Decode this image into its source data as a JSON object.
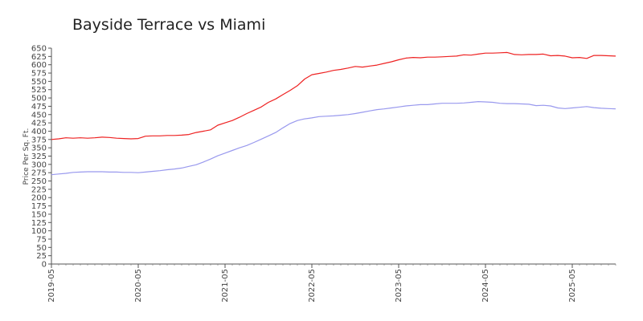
{
  "chart_data": {
    "type": "line",
    "title": "Bayside Terrace vs Miami",
    "xlabel": "",
    "ylabel": "Price Per Sq. Ft.",
    "ylim": [
      0,
      650
    ],
    "yticks": [
      0,
      25,
      50,
      75,
      100,
      125,
      150,
      175,
      200,
      225,
      250,
      275,
      300,
      325,
      350,
      375,
      400,
      425,
      450,
      475,
      500,
      525,
      550,
      575,
      600,
      625,
      650
    ],
    "xticks": [
      "2019-05",
      "2020-05",
      "2021-05",
      "2022-05",
      "2023-05",
      "2024-05",
      "2025-05"
    ],
    "xrange": [
      "2019-05",
      "2025-11"
    ],
    "grid": false,
    "legend": "none",
    "series": [
      {
        "color": "#ee2222",
        "x": [
          "2019-05",
          "2019-06",
          "2019-07",
          "2019-08",
          "2019-09",
          "2019-10",
          "2019-11",
          "2019-12",
          "2020-01",
          "2020-02",
          "2020-03",
          "2020-04",
          "2020-05",
          "2020-06",
          "2020-07",
          "2020-08",
          "2020-09",
          "2020-10",
          "2020-11",
          "2020-12",
          "2021-01",
          "2021-02",
          "2021-03",
          "2021-04",
          "2021-05",
          "2021-06",
          "2021-07",
          "2021-08",
          "2021-09",
          "2021-10",
          "2021-11",
          "2021-12",
          "2022-01",
          "2022-02",
          "2022-03",
          "2022-04",
          "2022-05",
          "2022-06",
          "2022-07",
          "2022-08",
          "2022-09",
          "2022-10",
          "2022-11",
          "2022-12",
          "2023-01",
          "2023-02",
          "2023-03",
          "2023-04",
          "2023-05",
          "2023-06",
          "2023-07",
          "2023-08",
          "2023-09",
          "2023-10",
          "2023-11",
          "2023-12",
          "2024-01",
          "2024-02",
          "2024-03",
          "2024-04",
          "2024-05",
          "2024-06",
          "2024-07",
          "2024-08",
          "2024-09",
          "2024-10",
          "2024-11",
          "2024-12",
          "2025-01",
          "2025-02",
          "2025-03",
          "2025-04",
          "2025-05",
          "2025-06",
          "2025-07",
          "2025-08",
          "2025-09",
          "2025-10",
          "2025-11"
        ],
        "values": [
          375,
          377,
          380,
          379,
          380,
          379,
          380,
          382,
          381,
          379,
          378,
          377,
          378,
          385,
          386,
          386,
          387,
          387,
          388,
          390,
          396,
          400,
          404,
          418,
          425,
          432,
          442,
          453,
          463,
          473,
          487,
          497,
          510,
          523,
          537,
          557,
          570,
          574,
          578,
          583,
          586,
          590,
          595,
          593,
          596,
          599,
          604,
          609,
          615,
          620,
          622,
          621,
          623,
          623,
          624,
          625,
          626,
          630,
          629,
          632,
          635,
          635,
          636,
          637,
          631,
          630,
          631,
          631,
          632,
          627,
          628,
          626,
          621,
          622,
          619,
          628,
          628,
          627,
          626
        ]
      },
      {
        "color": "#9999ee",
        "x": [
          "2019-05",
          "2019-06",
          "2019-07",
          "2019-08",
          "2019-09",
          "2019-10",
          "2019-11",
          "2019-12",
          "2020-01",
          "2020-02",
          "2020-03",
          "2020-04",
          "2020-05",
          "2020-06",
          "2020-07",
          "2020-08",
          "2020-09",
          "2020-10",
          "2020-11",
          "2020-12",
          "2021-01",
          "2021-02",
          "2021-03",
          "2021-04",
          "2021-05",
          "2021-06",
          "2021-07",
          "2021-08",
          "2021-09",
          "2021-10",
          "2021-11",
          "2021-12",
          "2022-01",
          "2022-02",
          "2022-03",
          "2022-04",
          "2022-05",
          "2022-06",
          "2022-07",
          "2022-08",
          "2022-09",
          "2022-10",
          "2022-11",
          "2022-12",
          "2023-01",
          "2023-02",
          "2023-03",
          "2023-04",
          "2023-05",
          "2023-06",
          "2023-07",
          "2023-08",
          "2023-09",
          "2023-10",
          "2023-11",
          "2023-12",
          "2024-01",
          "2024-02",
          "2024-03",
          "2024-04",
          "2024-05",
          "2024-06",
          "2024-07",
          "2024-08",
          "2024-09",
          "2024-10",
          "2024-11",
          "2024-12",
          "2025-01",
          "2025-02",
          "2025-03",
          "2025-04",
          "2025-05",
          "2025-06",
          "2025-07",
          "2025-08",
          "2025-09",
          "2025-10",
          "2025-11"
        ],
        "values": [
          269,
          271,
          273,
          276,
          277,
          278,
          278,
          278,
          277,
          277,
          276,
          276,
          275,
          277,
          279,
          281,
          284,
          286,
          289,
          294,
          299,
          307,
          316,
          326,
          334,
          342,
          350,
          357,
          366,
          376,
          386,
          396,
          410,
          423,
          432,
          437,
          440,
          444,
          445,
          446,
          448,
          450,
          453,
          457,
          461,
          465,
          467,
          470,
          473,
          476,
          478,
          480,
          480,
          482,
          484,
          484,
          484,
          485,
          487,
          489,
          488,
          487,
          484,
          483,
          483,
          482,
          481,
          477,
          478,
          476,
          470,
          468,
          470,
          472,
          474,
          471,
          469,
          468,
          467
        ]
      }
    ]
  }
}
